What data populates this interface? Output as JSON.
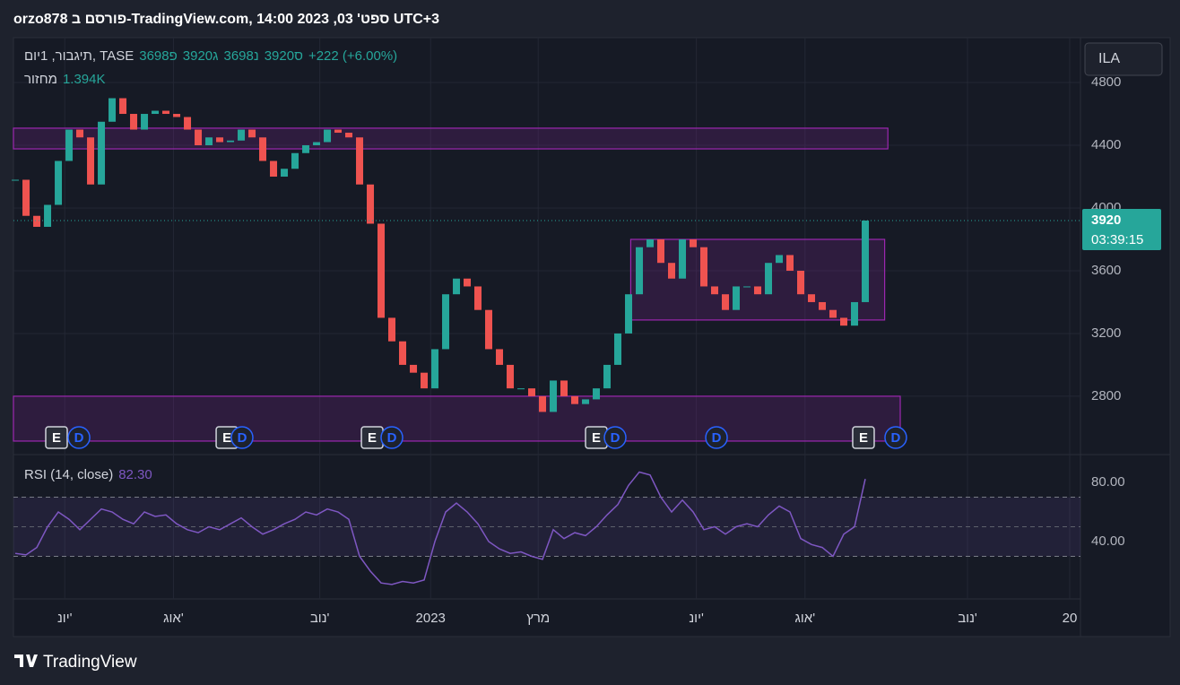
{
  "header": {
    "title": "orzo878 פורסם ב-TradingView.com, ספט' 03, 2023 14:00 UTC+3"
  },
  "chart_data": [
    {
      "type": "candlestick",
      "symbol": "תיגבור, 1יום, TASE",
      "ohlc": [
        {
          "label": "פ",
          "value": 3698
        },
        {
          "label": "ג",
          "value": 3920
        },
        {
          "label": "נ",
          "value": 3698
        },
        {
          "label": "ס",
          "value": 3920
        }
      ],
      "change": "+222 (+6.00%)",
      "volume_name": "מחזור",
      "volume": "1.394K",
      "last_value": 3920,
      "countdown": "03:39:15",
      "currency": "ILA",
      "up_color": "#26a69a",
      "down_color": "#ef5350",
      "values": [
        4180,
        3950,
        3880,
        4020,
        4300,
        4500,
        4450,
        4150,
        4550,
        4700,
        4600,
        4500,
        4600,
        4620,
        4600,
        4580,
        4500,
        4400,
        4450,
        4420,
        4430,
        4500,
        4450,
        4300,
        4200,
        4250,
        4350,
        4400,
        4420,
        4500,
        4480,
        4450,
        4150,
        3900,
        3300,
        3150,
        3000,
        2950,
        2850,
        3100,
        3450,
        3550,
        3500,
        3350,
        3100,
        3000,
        2850,
        2850,
        2800,
        2700,
        2900,
        2800,
        2750,
        2780,
        2850,
        3000,
        3200,
        3450,
        3750,
        3800,
        3650,
        3550,
        3800,
        3750,
        3500,
        3450,
        3350,
        3500,
        3500,
        3450,
        3650,
        3700,
        3600,
        3450,
        3400,
        3350,
        3300,
        3250,
        3400,
        3920
      ],
      "xlim": [
        -0.17,
        99.0
      ],
      "ylim": [
        2428,
        5086
      ],
      "yticks": [
        2800,
        3200,
        3600,
        4000,
        4400,
        4800
      ],
      "xticks": [
        {
          "value": 4.6,
          "label": "יונ'"
        },
        {
          "value": 14.7,
          "label": "אוג'"
        },
        {
          "value": 28.3,
          "label": "נוב'"
        },
        {
          "value": 38.6,
          "label": "2023"
        },
        {
          "value": 48.6,
          "label": "מרץ"
        },
        {
          "value": 63.3,
          "label": "יונ'"
        },
        {
          "value": 73.4,
          "label": "אוג'"
        },
        {
          "value": 88.5,
          "label": "נוב'"
        },
        {
          "value": 98.0,
          "label": "20"
        }
      ],
      "grid": true,
      "boxes": [
        {
          "x": [
            -0.17,
            81.1
          ],
          "y": [
            4377,
            4509
          ]
        },
        {
          "x": [
            57.2,
            80.8
          ],
          "y": [
            3286,
            3800
          ]
        },
        {
          "x": [
            -0.17,
            82.25
          ],
          "y": [
            2514,
            2800
          ]
        }
      ],
      "box_color": "#9c27b0",
      "events": [
        {
          "label": "E",
          "at": 3.83
        },
        {
          "label": "D",
          "at": 5.92
        },
        {
          "label": "E",
          "at": 19.67
        },
        {
          "label": "D",
          "at": 21.08
        },
        {
          "label": "E",
          "at": 33.17
        },
        {
          "label": "D",
          "at": 35.0
        },
        {
          "label": "E",
          "at": 54.0
        },
        {
          "label": "D",
          "at": 55.75
        },
        {
          "label": "D",
          "at": 65.17
        },
        {
          "label": "E",
          "at": 78.83
        },
        {
          "label": "D",
          "at": 81.83
        }
      ]
    },
    {
      "type": "line",
      "name": "RSI (14, close)",
      "color": "#7e57c2",
      "current": {
        "value": 82.3,
        "label": "82.30"
      },
      "values": [
        32,
        31,
        36,
        50,
        60,
        55,
        48,
        55,
        62,
        60,
        55,
        52,
        60,
        57,
        58,
        52,
        48,
        46,
        50,
        48,
        52,
        56,
        50,
        45,
        48,
        52,
        55,
        60,
        58,
        62,
        60,
        55,
        30,
        20,
        12,
        11,
        13,
        12,
        14,
        40,
        60,
        66,
        60,
        52,
        40,
        35,
        32,
        33,
        30,
        28,
        48,
        42,
        46,
        44,
        50,
        58,
        65,
        78,
        87,
        85,
        70,
        60,
        68,
        60,
        48,
        50,
        45,
        50,
        52,
        50,
        58,
        64,
        60,
        42,
        38,
        36,
        30,
        45,
        50,
        82.3
      ],
      "ylim": [
        1.2,
        98.8
      ],
      "yticks": [
        {
          "value": 80,
          "label": "80.00"
        },
        {
          "value": 40,
          "label": "40.00"
        }
      ],
      "band": [
        30,
        70
      ],
      "midline": 50
    }
  ],
  "footer": {
    "logo": "TradingView"
  }
}
